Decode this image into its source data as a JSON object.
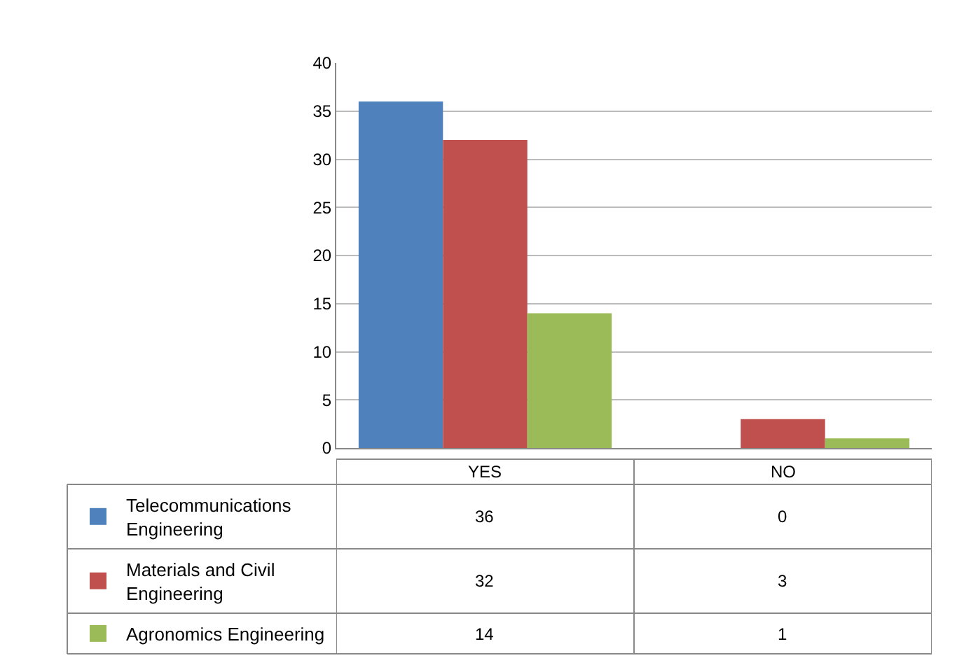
{
  "chart_data": {
    "type": "bar",
    "categories": [
      "YES",
      "NO"
    ],
    "series": [
      {
        "name": "Telecommunications Engineering",
        "color": "#4f81bd",
        "values": [
          36,
          0
        ]
      },
      {
        "name": "Materials and Civil Engineering",
        "color": "#c0504d",
        "values": [
          32,
          3
        ]
      },
      {
        "name": "Agronomics Engineering",
        "color": "#9bbb59",
        "values": [
          14,
          1
        ]
      }
    ],
    "ylim": [
      0,
      40
    ],
    "yticks": [
      0,
      5,
      10,
      15,
      20,
      25,
      30,
      35,
      40
    ],
    "grid": "y",
    "data_labels": true,
    "legend": "bottom left"
  }
}
